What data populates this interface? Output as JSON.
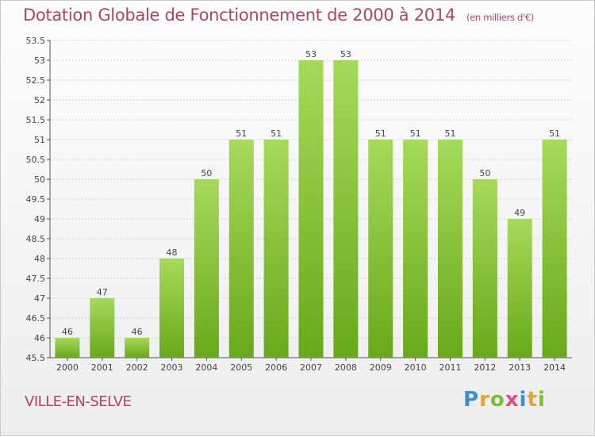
{
  "header": {
    "title": "Dotation Globale de Fonctionnement de 2000 à 2014",
    "unit": "(en milliers d'€)"
  },
  "footer": {
    "commune": "VILLE-EN-SELVE",
    "brand_letters": [
      "P",
      "r",
      "o",
      "x",
      "i",
      "t",
      "i"
    ]
  },
  "colors": {
    "title": "#b3426b",
    "bar_light": "#a6d95a",
    "bar_dark": "#69a81a",
    "grid": "#d0d0d0"
  },
  "chart_data": {
    "type": "bar",
    "title": "Dotation Globale de Fonctionnement de 2000 à 2014",
    "subtitle": "(en milliers d'€)",
    "xlabel": "",
    "ylabel": "",
    "categories": [
      "2000",
      "2001",
      "2002",
      "2003",
      "2004",
      "2005",
      "2006",
      "2007",
      "2008",
      "2009",
      "2010",
      "2011",
      "2012",
      "2013",
      "2014"
    ],
    "values": [
      46,
      47,
      46,
      48,
      50,
      51,
      51,
      53,
      53,
      51,
      51,
      51,
      50,
      49,
      51
    ],
    "labels": [
      "46",
      "47",
      "46",
      "48",
      "50",
      "51",
      "51",
      "53",
      "53",
      "51",
      "51",
      "51",
      "50",
      "49",
      "51"
    ],
    "ylim": [
      45.5,
      53.5
    ],
    "yticks": [
      45.5,
      46,
      46.5,
      47,
      47.5,
      48,
      48.5,
      49,
      49.5,
      50,
      50.5,
      51,
      51.5,
      52,
      52.5,
      53,
      53.5
    ],
    "ytick_labels": [
      "45.5",
      "46",
      "46.5",
      "47",
      "47.5",
      "48",
      "48.5",
      "49",
      "49.5",
      "50",
      "50.5",
      "51",
      "51.5",
      "52",
      "52.5",
      "53",
      "53.5"
    ],
    "grid": true,
    "legend": "none"
  }
}
